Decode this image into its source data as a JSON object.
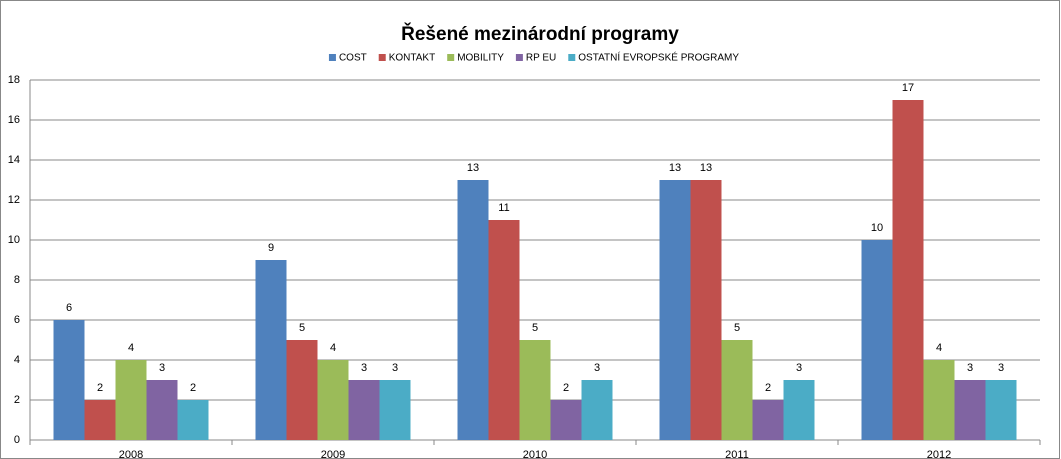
{
  "chart_data": {
    "type": "bar",
    "title": "Řešené mezinárodní programy",
    "categories": [
      "2008",
      "2009",
      "2010",
      "2011",
      "2012"
    ],
    "series": [
      {
        "name": "COST",
        "color": "#4f81bd",
        "values": [
          6,
          9,
          13,
          13,
          10
        ]
      },
      {
        "name": "KONTAKT",
        "color": "#c0504d",
        "values": [
          2,
          5,
          11,
          13,
          17
        ]
      },
      {
        "name": "MOBILITY",
        "color": "#9bbb59",
        "values": [
          4,
          4,
          5,
          5,
          4
        ]
      },
      {
        "name": "RP EU",
        "color": "#8064a2",
        "values": [
          3,
          3,
          2,
          2,
          3
        ]
      },
      {
        "name": "OSTATNÍ EVROPSKÉ PROGRAMY",
        "color": "#4bacc6",
        "values": [
          2,
          3,
          3,
          3,
          3
        ]
      }
    ],
    "ylim": [
      0,
      18
    ],
    "yticks": [
      0,
      2,
      4,
      6,
      8,
      10,
      12,
      14,
      16,
      18
    ],
    "grid": true,
    "legend": "top"
  }
}
